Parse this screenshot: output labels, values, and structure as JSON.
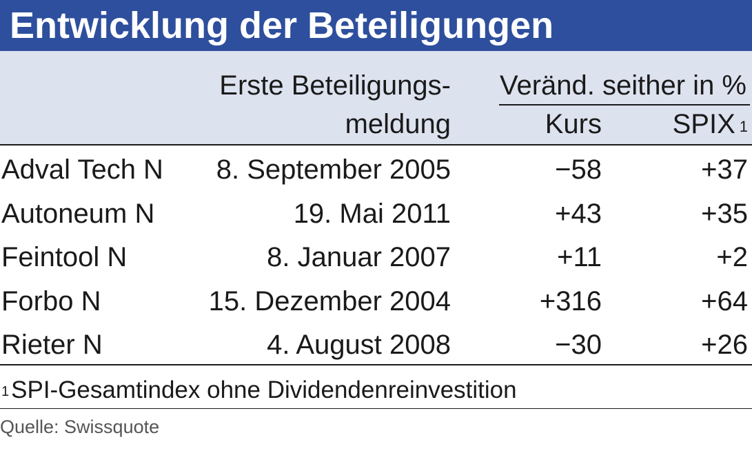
{
  "chart_data": {
    "type": "table",
    "title": "Entwicklung der Beteiligungen",
    "columns": {
      "date_line1": "Erste Beteiligungs-",
      "date_line2": "meldung",
      "group": "Veränd. seither in %",
      "kurs": "Kurs",
      "spix": "SPIX",
      "spix_sup": "1"
    },
    "rows": [
      {
        "name": "Adval Tech N",
        "date": "8. September 2005",
        "kurs": "−58",
        "spix": "+37"
      },
      {
        "name": "Autoneum N",
        "date": "19. Mai 2011",
        "kurs": "+43",
        "spix": "+35"
      },
      {
        "name": "Feintool N",
        "date": "8. Januar 2007",
        "kurs": "+11",
        "spix": "+2"
      },
      {
        "name": "Forbo N",
        "date": "15. Dezember 2004",
        "kurs": "+316",
        "spix": "+64"
      },
      {
        "name": "Rieter N",
        "date": "4. August 2008",
        "kurs": "−30",
        "spix": "+26"
      }
    ],
    "footnote_mark": "1",
    "footnote": "SPI-Gesamtindex ohne Dividendenreinvestition",
    "source": "Quelle: Swissquote"
  },
  "colors": {
    "title_bg": "#2e4f9d",
    "header_bg": "#dde2ef"
  }
}
